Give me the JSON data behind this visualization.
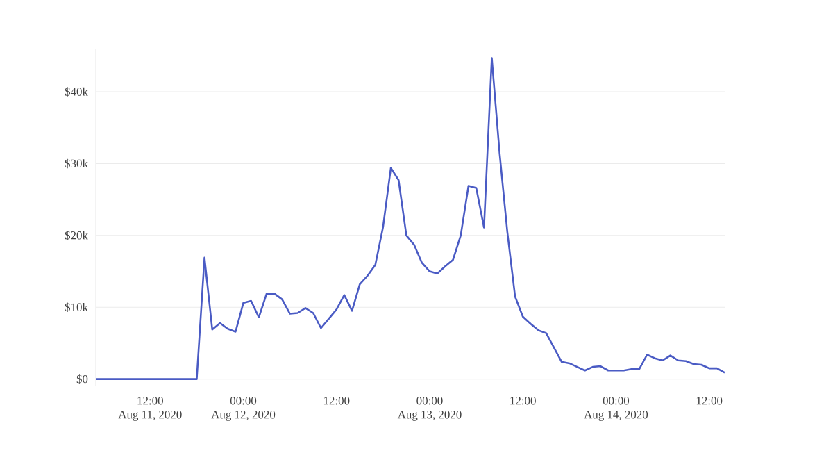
{
  "chart_data": {
    "type": "line",
    "x": [
      "2020-08-11T05:00",
      "2020-08-11T18:00",
      "2020-08-11T19:00",
      "2020-08-11T20:00",
      "2020-08-11T21:00",
      "2020-08-11T22:00",
      "2020-08-11T23:00",
      "2020-08-12T00:00",
      "2020-08-12T01:00",
      "2020-08-12T02:00",
      "2020-08-12T03:00",
      "2020-08-12T04:00",
      "2020-08-12T05:00",
      "2020-08-12T06:00",
      "2020-08-12T07:00",
      "2020-08-12T08:00",
      "2020-08-12T09:00",
      "2020-08-12T10:00",
      "2020-08-12T11:00",
      "2020-08-12T12:00",
      "2020-08-12T13:00",
      "2020-08-12T14:00",
      "2020-08-12T15:00",
      "2020-08-12T16:00",
      "2020-08-12T17:00",
      "2020-08-12T18:00",
      "2020-08-12T19:00",
      "2020-08-12T20:00",
      "2020-08-12T21:00",
      "2020-08-12T22:00",
      "2020-08-12T23:00",
      "2020-08-13T00:00",
      "2020-08-13T01:00",
      "2020-08-13T02:00",
      "2020-08-13T03:00",
      "2020-08-13T04:00",
      "2020-08-13T05:00",
      "2020-08-13T06:00",
      "2020-08-13T07:00",
      "2020-08-13T08:00",
      "2020-08-13T09:00",
      "2020-08-13T10:00",
      "2020-08-13T11:00",
      "2020-08-13T12:00",
      "2020-08-13T13:00",
      "2020-08-13T14:00",
      "2020-08-13T15:00",
      "2020-08-13T16:00",
      "2020-08-13T17:00",
      "2020-08-13T18:00",
      "2020-08-13T19:00",
      "2020-08-13T20:00",
      "2020-08-13T21:00",
      "2020-08-13T22:00",
      "2020-08-13T23:00",
      "2020-08-14T00:00",
      "2020-08-14T01:00",
      "2020-08-14T02:00",
      "2020-08-14T03:00",
      "2020-08-14T04:00",
      "2020-08-14T05:00",
      "2020-08-14T06:00",
      "2020-08-14T07:00",
      "2020-08-14T08:00",
      "2020-08-14T09:00",
      "2020-08-14T10:00",
      "2020-08-14T11:00",
      "2020-08-14T12:00",
      "2020-08-14T13:00",
      "2020-08-14T14:00"
    ],
    "series": [
      {
        "color": "#4a5bc4",
        "values": [
          0,
          0,
          16900,
          6900,
          7800,
          7000,
          6600,
          10600,
          10900,
          8600,
          11900,
          11900,
          11100,
          9100,
          9200,
          9900,
          9200,
          7100,
          8400,
          9700,
          11700,
          9500,
          13200,
          14400,
          15900,
          21200,
          29400,
          27700,
          20000,
          18700,
          16200,
          15000,
          14700,
          15700,
          16600,
          20000,
          26900,
          26600,
          21100,
          44700,
          31500,
          20500,
          11500,
          8700,
          7700,
          6800,
          6400,
          4400,
          2400,
          2200,
          1700,
          1200,
          1700,
          1800,
          1200,
          1200,
          1200,
          1400,
          1400,
          3400,
          2900,
          2600,
          3300,
          2600,
          2500,
          2100,
          2000,
          1500,
          1500,
          900
        ]
      }
    ],
    "xlim": [
      "2020-08-11T05:00",
      "2020-08-14T14:00"
    ],
    "xticks": [
      {
        "value": "2020-08-11T12:00",
        "label": "12:00\nAug 11, 2020"
      },
      {
        "value": "2020-08-12T00:00",
        "label": "00:00\nAug 12, 2020"
      },
      {
        "value": "2020-08-12T12:00",
        "label": "12:00"
      },
      {
        "value": "2020-08-13T00:00",
        "label": "00:00\nAug 13, 2020"
      },
      {
        "value": "2020-08-13T12:00",
        "label": "12:00"
      },
      {
        "value": "2020-08-14T00:00",
        "label": "00:00\nAug 14, 2020"
      },
      {
        "value": "2020-08-14T12:00",
        "label": "12:00"
      }
    ],
    "ylim": [
      -1000,
      46000
    ],
    "yticks": [
      {
        "value": 0,
        "label": "$0"
      },
      {
        "value": 10000,
        "label": "$10k"
      },
      {
        "value": 20000,
        "label": "$20k"
      },
      {
        "value": 30000,
        "label": "$30k"
      },
      {
        "value": 40000,
        "label": "$40k"
      }
    ],
    "grid": "y",
    "marker": "none",
    "line_style": "solid"
  }
}
